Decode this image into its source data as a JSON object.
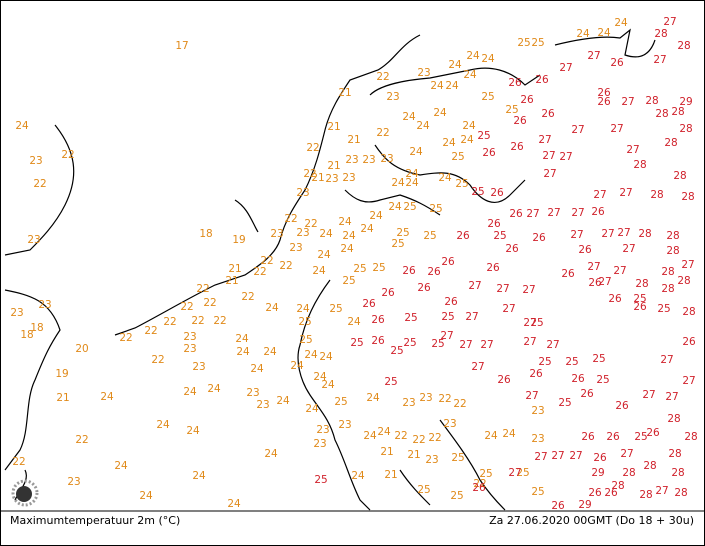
{
  "map": {
    "caption_left": "Maximumtemperatuur 2m (°C)",
    "caption_right": "Za 27.06.2020 00GMT (Do 18 + 30u)",
    "groups": [
      {
        "color": "#e08a1a",
        "values": [
          17,
          24,
          24,
          24,
          25,
          25,
          24,
          24,
          24,
          22,
          23,
          24,
          24,
          24,
          21,
          23,
          25,
          24,
          24,
          24,
          24,
          24,
          25,
          22,
          21,
          21,
          22,
          24,
          24,
          23,
          22,
          22,
          21,
          23,
          23,
          23,
          24,
          25,
          22,
          21,
          23,
          23,
          24,
          24,
          24,
          25,
          23,
          22,
          22,
          24,
          24,
          24,
          24,
          25,
          25,
          24,
          18,
          19,
          23,
          23,
          23,
          24,
          24,
          25,
          25,
          23,
          24,
          24,
          25,
          22,
          22,
          21,
          22,
          24,
          25,
          25,
          22,
          21,
          25,
          24,
          25,
          24,
          25,
          23,
          23,
          18,
          18,
          22,
          22,
          22,
          22,
          22,
          24,
          22,
          22,
          22,
          23,
          24,
          25,
          20,
          23,
          24,
          24,
          24,
          24,
          23,
          22,
          24,
          24,
          24,
          19,
          21,
          24,
          24,
          24,
          24,
          23,
          24,
          23,
          24,
          25,
          24,
          23,
          23,
          22,
          22,
          23,
          24,
          24,
          23,
          23,
          24,
          24,
          22,
          22,
          22,
          23,
          24,
          24,
          23,
          22,
          21,
          21,
          23,
          23,
          24,
          22,
          24,
          25,
          25,
          22,
          24,
          23,
          21,
          24,
          25,
          25,
          25,
          24,
          24,
          25
        ]
      },
      {
        "color": "#d0222c",
        "values": [
          27,
          28,
          28,
          27,
          26,
          27,
          27,
          26,
          26,
          26,
          26,
          27,
          28,
          29,
          26,
          26,
          28,
          28,
          25,
          26,
          27,
          27,
          28,
          26,
          26,
          27,
          27,
          27,
          27,
          28,
          28,
          28,
          25,
          26,
          27,
          26,
          27,
          27,
          27,
          26,
          27,
          27,
          28,
          28,
          26,
          26,
          25,
          27,
          27,
          27,
          28,
          28,
          26,
          26,
          26,
          27,
          28,
          26,
          26,
          26,
          26,
          26,
          27,
          27,
          28,
          28,
          28,
          27,
          26,
          26,
          27,
          26,
          27,
          27,
          26,
          27,
          26,
          25,
          26,
          28,
          25,
          26,
          25,
          25,
          27,
          27,
          27,
          25,
          26,
          25,
          26,
          25,
          27,
          27,
          27,
          27,
          27,
          28,
          26,
          25,
          25,
          26,
          27,
          26,
          25,
          25,
          25,
          26,
          25,
          27,
          27,
          25,
          27,
          25,
          26,
          27,
          27,
          28,
          26,
          26,
          26,
          25,
          26,
          28,
          27,
          27,
          27,
          27,
          26,
          27,
          28,
          28,
          29,
          28,
          28,
          25,
          26,
          26,
          26,
          28,
          28,
          27,
          28,
          26,
          29
        ]
      }
    ]
  }
}
